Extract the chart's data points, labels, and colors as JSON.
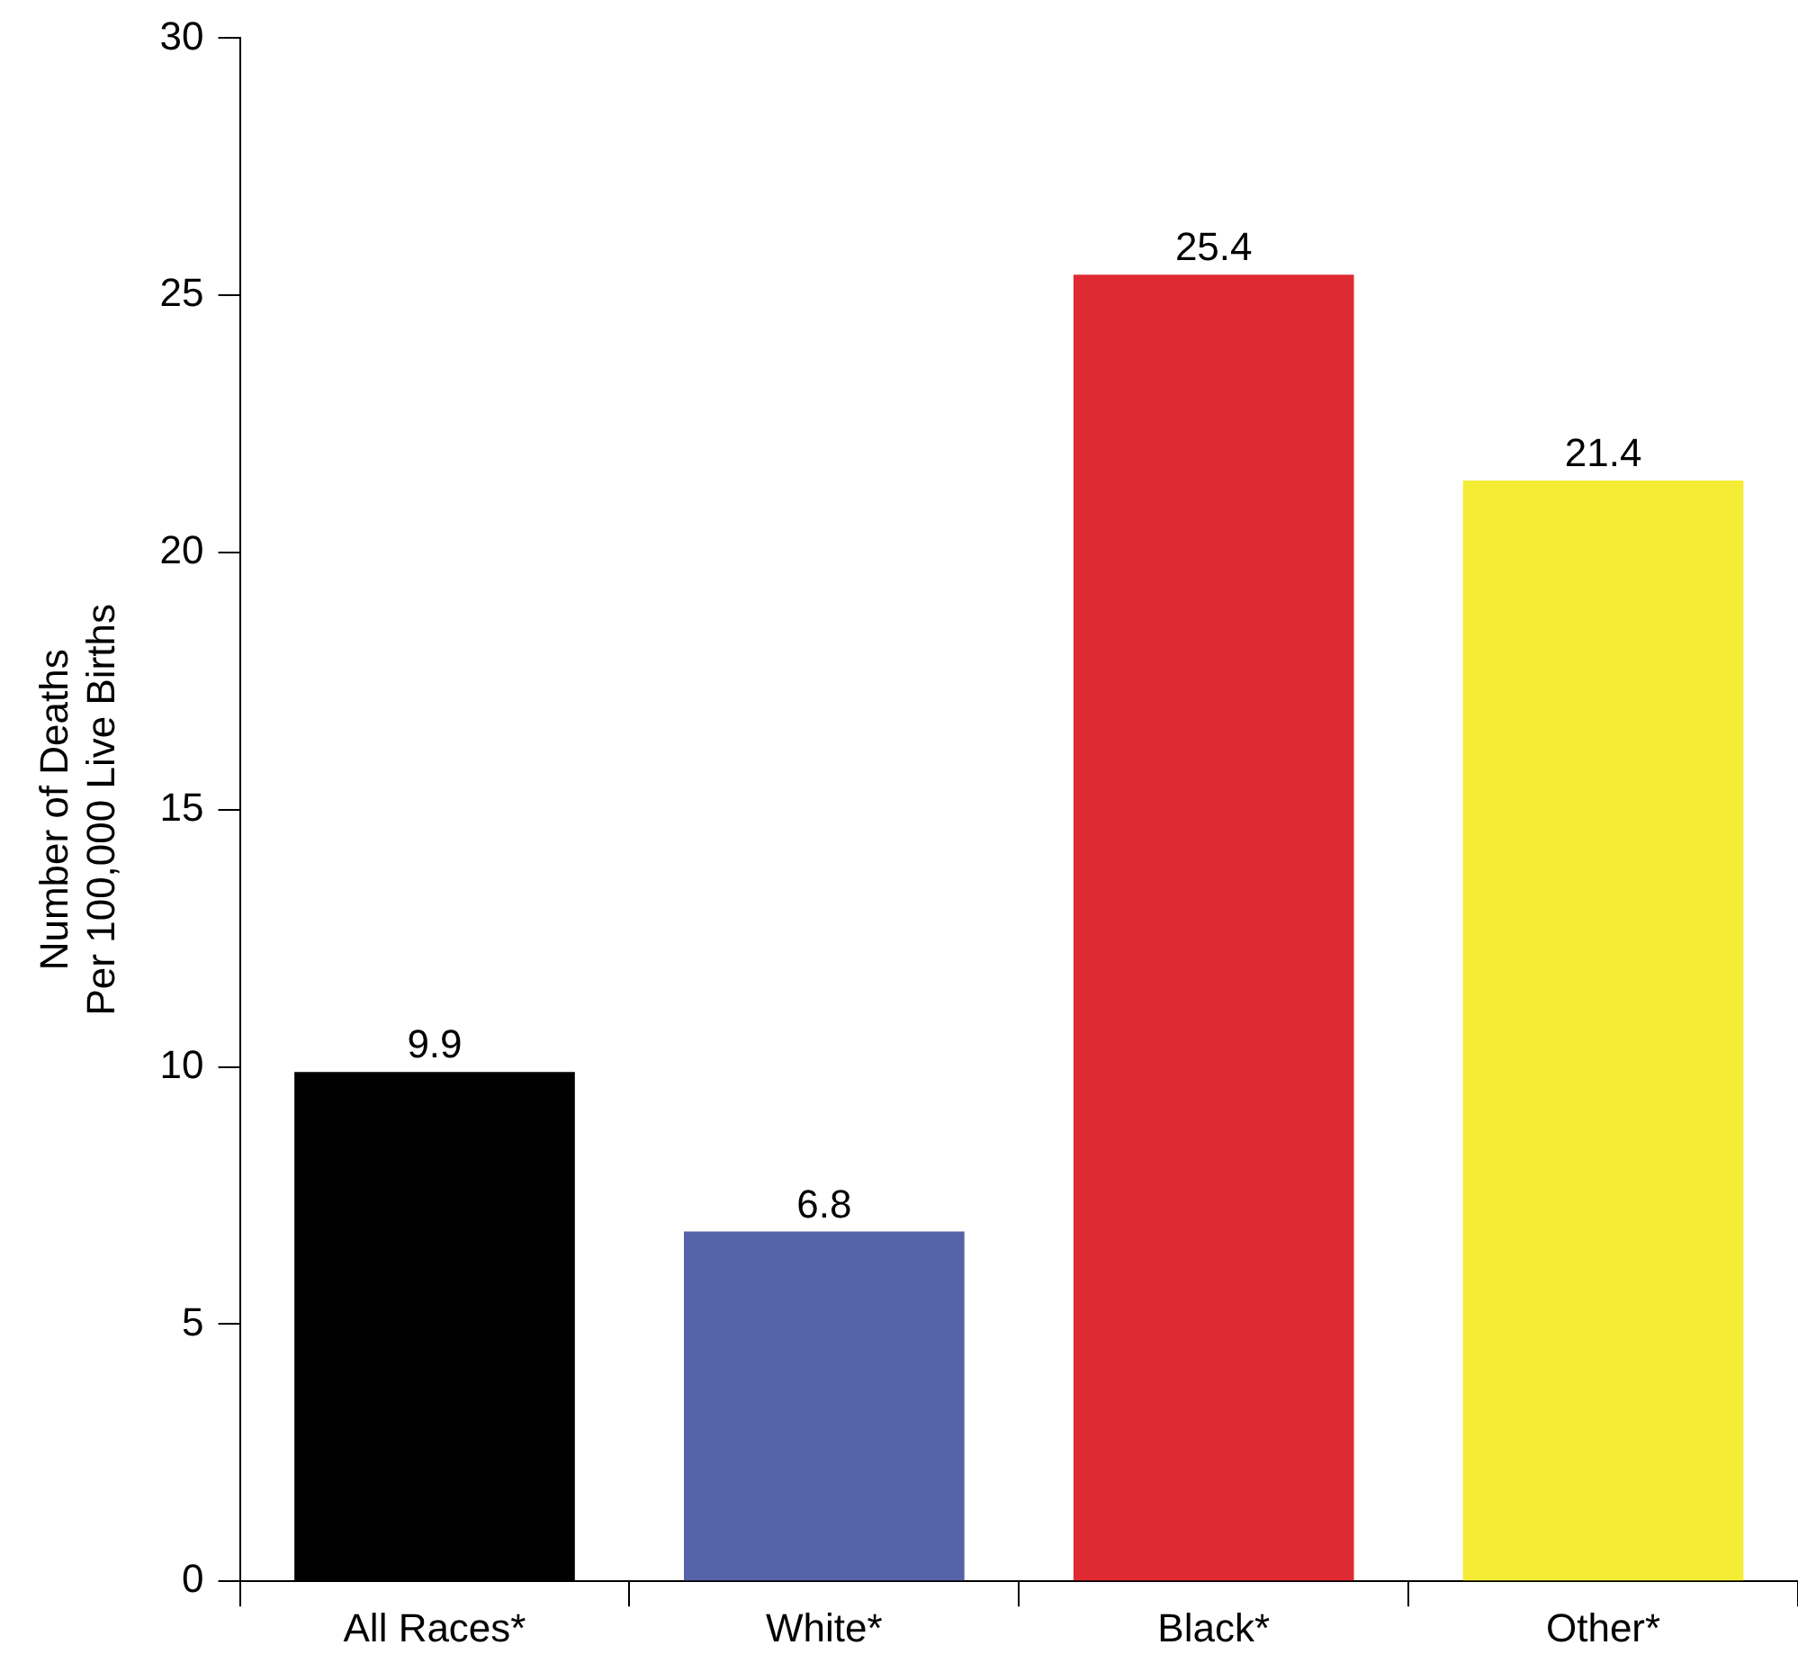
{
  "chart_data": {
    "type": "bar",
    "ylabel": "Number of Deaths\nPer 100,000 Live Births",
    "categories": [
      "All Races*",
      "White*",
      "Black*",
      "Other*"
    ],
    "values": [
      9.9,
      6.8,
      25.4,
      21.4
    ],
    "colors": [
      "#000000",
      "#5563a9",
      "#e02a33",
      "#f4ec35"
    ],
    "ylim": [
      0,
      30
    ],
    "yticks": [
      0,
      5,
      10,
      15,
      20,
      25,
      30
    ],
    "data_labels": true,
    "grid": false,
    "legend": false
  }
}
